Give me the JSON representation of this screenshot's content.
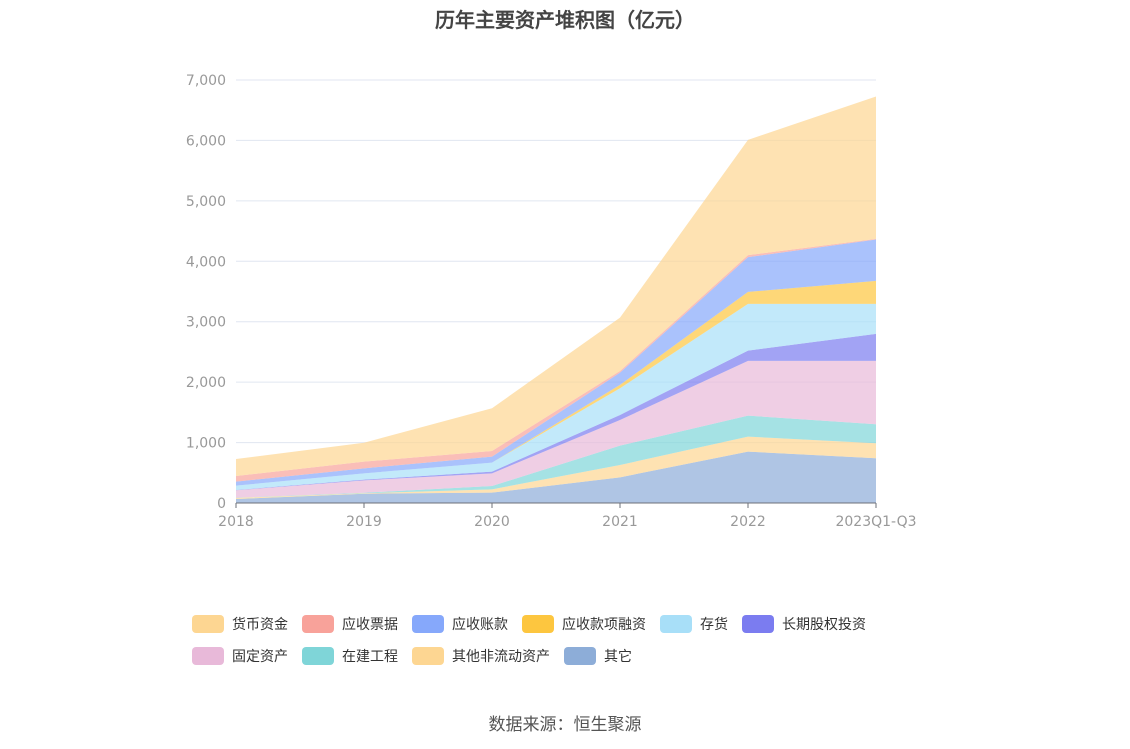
{
  "chart_data": {
    "type": "area",
    "stacked": true,
    "title": "历年主要资产堆积图（亿元）",
    "categories": [
      "2018",
      "2019",
      "2020",
      "2021",
      "2022",
      "2023Q1-Q3"
    ],
    "ylim": [
      0,
      7000
    ],
    "yticks": [
      "0",
      "1,000",
      "2,000",
      "3,000",
      "4,000",
      "5,000",
      "6,000",
      "7,000"
    ],
    "ytick_values": [
      0,
      1000,
      2000,
      3000,
      4000,
      5000,
      6000,
      7000
    ],
    "grid": true,
    "legend_position": "bottom",
    "series": [
      {
        "name": "其它",
        "color": "#8dadd8",
        "values": [
          66,
          154,
          171,
          425,
          850,
          740
        ]
      },
      {
        "name": "其他非流动资产",
        "color": "#fdd692",
        "values": [
          19,
          7,
          55,
          204,
          248,
          248
        ]
      },
      {
        "name": "在建工程",
        "color": "#7fd5d8",
        "values": [
          3,
          9,
          55,
          320,
          348,
          315
        ]
      },
      {
        "name": "固定资产",
        "color": "#e8b9d9",
        "values": [
          122,
          205,
          210,
          425,
          905,
          1048
        ]
      },
      {
        "name": "长期股权投资",
        "color": "#7b7cf0",
        "values": [
          5,
          11,
          28,
          83,
          171,
          447
        ]
      },
      {
        "name": "存货",
        "color": "#a8dff8",
        "values": [
          72,
          105,
          149,
          442,
          773,
          497
        ]
      },
      {
        "name": "应收款项融资",
        "color": "#fdc63f",
        "values": [
          0,
          0,
          0,
          55,
          198,
          380
        ]
      },
      {
        "name": "应收账款",
        "color": "#86a8fb",
        "values": [
          66,
          83,
          99,
          203,
          575,
          685
        ]
      },
      {
        "name": "应收票据",
        "color": "#f8a29a",
        "values": [
          94,
          110,
          94,
          28,
          33,
          11
        ]
      },
      {
        "name": "货币资金",
        "color": "#fdd692",
        "values": [
          281,
          314,
          707,
          883,
          1909,
          2356
        ]
      }
    ],
    "legend_order": [
      "货币资金",
      "应收票据",
      "应收账款",
      "应收款项融资",
      "存货",
      "长期股权投资",
      "固定资产",
      "在建工程",
      "其他非流动资产",
      "其它"
    ]
  },
  "source": "数据来源：恒生聚源"
}
